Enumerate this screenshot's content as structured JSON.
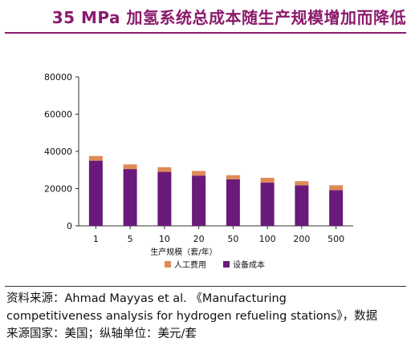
{
  "title": "35 MPa 加氢系统总成本随生产规模增加而降低",
  "source": {
    "line1": "资料来源：Ahmad Mayyas et al. 《Manufacturing",
    "line2": "competitiveness analysis for hydrogen refueling stations》，数据",
    "line3": "来源国家：美国；纵轴单位：美元/套"
  },
  "chart_data": {
    "type": "bar",
    "stacked": true,
    "categories": [
      "1",
      "5",
      "10",
      "20",
      "50",
      "100",
      "200",
      "500"
    ],
    "xlabel": "生产规模（套/年）",
    "ylabel": "",
    "ylim": [
      0,
      80000
    ],
    "yticks": [
      "0",
      "20000",
      "40000",
      "60000",
      "80000"
    ],
    "grid": false,
    "legend_position": "bottom",
    "series": [
      {
        "name": "设备成本",
        "color": "#6A1A7A",
        "values": [
          35000,
          30500,
          29000,
          27000,
          25000,
          23200,
          21800,
          19200
        ]
      },
      {
        "name": "人工费用",
        "color": "#E08A56",
        "values": [
          2500,
          2500,
          2500,
          2500,
          2200,
          2600,
          2200,
          2600
        ]
      }
    ],
    "legend": [
      "人工费用",
      "设备成本"
    ]
  }
}
